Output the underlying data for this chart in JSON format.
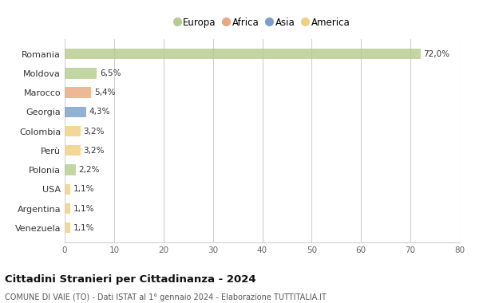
{
  "countries": [
    "Romania",
    "Moldova",
    "Marocco",
    "Georgia",
    "Colombia",
    "Perù",
    "Polonia",
    "USA",
    "Argentina",
    "Venezuela"
  ],
  "values": [
    72.0,
    6.5,
    5.4,
    4.3,
    3.2,
    3.2,
    2.2,
    1.1,
    1.1,
    1.1
  ],
  "labels": [
    "72,0%",
    "6,5%",
    "5,4%",
    "4,3%",
    "3,2%",
    "3,2%",
    "2,2%",
    "1,1%",
    "1,1%",
    "1,1%"
  ],
  "continents": [
    "Europa",
    "Europa",
    "Africa",
    "Asia",
    "America",
    "America",
    "Europa",
    "America",
    "America",
    "America"
  ],
  "colors": {
    "Europa": "#b5cc8e",
    "Africa": "#e8a97e",
    "Asia": "#7b9fcc",
    "America": "#f0d080"
  },
  "legend_order": [
    "Europa",
    "Africa",
    "Asia",
    "America"
  ],
  "legend_colors": [
    "#b5cc8e",
    "#e8a97e",
    "#7b9fcc",
    "#f0d080"
  ],
  "xlim": [
    0,
    80
  ],
  "xticks": [
    0,
    10,
    20,
    30,
    40,
    50,
    60,
    70,
    80
  ],
  "title": "Cittadini Stranieri per Cittadinanza - 2024",
  "subtitle": "COMUNE DI VAIE (TO) - Dati ISTAT al 1° gennaio 2024 - Elaborazione TUTTITALIA.IT",
  "background_color": "#ffffff",
  "grid_color": "#d0d0d0",
  "bar_height": 0.55
}
